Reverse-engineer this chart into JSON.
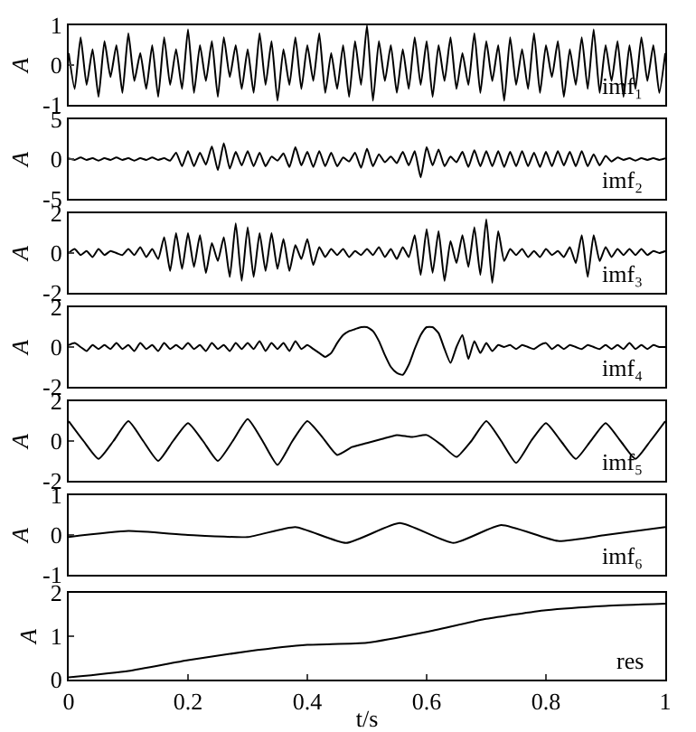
{
  "chart_data": [
    {
      "type": "line",
      "ylabel": "A",
      "annotations": [
        "imf₁"
      ],
      "xlim": [
        0,
        1
      ],
      "ylim": [
        -1,
        1
      ],
      "yticks": [
        -1,
        0,
        1
      ],
      "tick_labels": "y",
      "grid": false,
      "marker": "none",
      "line_style": "solid",
      "x": [
        0,
        0.01,
        0.02,
        0.03,
        0.04,
        0.05,
        0.06,
        0.07,
        0.08,
        0.09,
        0.1,
        0.11,
        0.12,
        0.13,
        0.14,
        0.15,
        0.16,
        0.17,
        0.18,
        0.19,
        0.2,
        0.21,
        0.22,
        0.23,
        0.24,
        0.25,
        0.26,
        0.27,
        0.28,
        0.29,
        0.3,
        0.31,
        0.32,
        0.33,
        0.34,
        0.35,
        0.36,
        0.37,
        0.38,
        0.39,
        0.4,
        0.41,
        0.42,
        0.43,
        0.44,
        0.45,
        0.46,
        0.47,
        0.48,
        0.49,
        0.5,
        0.51,
        0.52,
        0.53,
        0.54,
        0.55,
        0.56,
        0.57,
        0.58,
        0.59,
        0.6,
        0.61,
        0.62,
        0.63,
        0.64,
        0.65,
        0.66,
        0.67,
        0.68,
        0.69,
        0.7,
        0.71,
        0.72,
        0.73,
        0.74,
        0.75,
        0.76,
        0.77,
        0.78,
        0.79,
        0.8,
        0.81,
        0.82,
        0.83,
        0.84,
        0.85,
        0.86,
        0.87,
        0.88,
        0.89,
        0.9,
        0.91,
        0.92,
        0.93,
        0.94,
        0.95,
        0.96,
        0.97,
        0.98,
        0.99,
        1
      ],
      "series": [
        {
          "color": "#000000",
          "values": [
            0.3,
            -0.6,
            0.7,
            -0.5,
            0.4,
            -0.8,
            0.6,
            -0.3,
            0.5,
            -0.7,
            0.8,
            -0.4,
            0.3,
            -0.6,
            0.5,
            -0.8,
            0.7,
            -0.5,
            0.4,
            -0.6,
            0.9,
            -0.7,
            0.5,
            -0.4,
            0.6,
            -0.8,
            0.7,
            -0.3,
            0.5,
            -0.6,
            0.4,
            -0.7,
            0.8,
            -0.5,
            0.6,
            -0.9,
            0.4,
            -0.5,
            0.7,
            -0.6,
            0.5,
            -0.4,
            0.8,
            -0.7,
            0.3,
            -0.6,
            0.5,
            -0.8,
            0.6,
            -0.5,
            1.0,
            -0.9,
            0.6,
            -0.4,
            0.5,
            -0.7,
            0.4,
            -0.6,
            0.7,
            -0.5,
            0.6,
            -0.8,
            0.5,
            -0.4,
            0.7,
            -0.6,
            0.3,
            -0.5,
            0.8,
            -0.7,
            0.6,
            -0.4,
            0.5,
            -0.9,
            0.7,
            -0.5,
            0.4,
            -0.6,
            0.8,
            -0.7,
            0.5,
            -0.3,
            0.6,
            -0.8,
            0.4,
            -0.5,
            0.7,
            -0.6,
            0.9,
            -0.7,
            0.5,
            -0.4,
            0.6,
            -0.8,
            0.5,
            -0.6,
            0.7,
            -0.4,
            0.5,
            -0.7,
            0.3
          ]
        }
      ]
    },
    {
      "type": "line",
      "ylabel": "A",
      "annotations": [
        "imf₂"
      ],
      "xlim": [
        0,
        1
      ],
      "ylim": [
        -5,
        5
      ],
      "yticks": [
        -5,
        0,
        5
      ],
      "tick_labels": "y",
      "grid": false,
      "marker": "none",
      "line_style": "solid",
      "x": [
        0,
        0.01,
        0.02,
        0.03,
        0.04,
        0.05,
        0.06,
        0.07,
        0.08,
        0.09,
        0.1,
        0.11,
        0.12,
        0.13,
        0.14,
        0.15,
        0.16,
        0.17,
        0.18,
        0.19,
        0.2,
        0.21,
        0.22,
        0.23,
        0.24,
        0.25,
        0.26,
        0.27,
        0.28,
        0.29,
        0.3,
        0.31,
        0.32,
        0.33,
        0.34,
        0.35,
        0.36,
        0.37,
        0.38,
        0.39,
        0.4,
        0.41,
        0.42,
        0.43,
        0.44,
        0.45,
        0.46,
        0.47,
        0.48,
        0.49,
        0.5,
        0.51,
        0.52,
        0.53,
        0.54,
        0.55,
        0.56,
        0.57,
        0.58,
        0.59,
        0.6,
        0.61,
        0.62,
        0.63,
        0.64,
        0.65,
        0.66,
        0.67,
        0.68,
        0.69,
        0.7,
        0.71,
        0.72,
        0.73,
        0.74,
        0.75,
        0.76,
        0.77,
        0.78,
        0.79,
        0.8,
        0.81,
        0.82,
        0.83,
        0.84,
        0.85,
        0.86,
        0.87,
        0.88,
        0.89,
        0.9,
        0.91,
        0.92,
        0.93,
        0.94,
        0.95,
        0.96,
        0.97,
        0.98,
        0.99,
        1
      ],
      "series": [
        {
          "color": "#000000",
          "values": [
            0.1,
            -0.1,
            0.2,
            -0.1,
            0.1,
            -0.2,
            0.1,
            -0.1,
            0.2,
            -0.1,
            0.1,
            -0.2,
            0.1,
            -0.1,
            0.2,
            -0.1,
            0.1,
            -0.2,
            0.8,
            -0.9,
            1.0,
            -0.9,
            0.8,
            -0.7,
            1.6,
            -1.4,
            2.0,
            -1.2,
            0.9,
            -0.8,
            1.0,
            -0.9,
            0.8,
            -0.9,
            0.3,
            -0.2,
            0.7,
            -1.0,
            1.5,
            -0.8,
            0.9,
            -1.0,
            1.0,
            -0.9,
            0.8,
            -0.9,
            0.2,
            -0.3,
            0.8,
            -1.1,
            1.3,
            -0.9,
            0.6,
            -0.4,
            0.3,
            -0.5,
            0.9,
            -0.8,
            1.0,
            -2.3,
            1.5,
            -0.8,
            1.2,
            -0.9,
            0.3,
            -0.4,
            0.9,
            -1.0,
            1.1,
            -0.9,
            1.0,
            -0.9,
            1.0,
            -1.0,
            0.9,
            -0.9,
            1.0,
            -0.9,
            0.8,
            -1.0,
            0.9,
            -0.9,
            1.0,
            -0.8,
            0.9,
            -0.9,
            1.0,
            -0.9,
            0.6,
            -0.8,
            0.4,
            -0.3,
            0.2,
            -0.1,
            0.1,
            -0.2,
            0.1,
            -0.1,
            0.1,
            -0.1,
            0.1
          ]
        }
      ]
    },
    {
      "type": "line",
      "ylabel": "A",
      "annotations": [
        "imf₃"
      ],
      "xlim": [
        0,
        1
      ],
      "ylim": [
        -2,
        2
      ],
      "yticks": [
        -2,
        0,
        2
      ],
      "tick_labels": "y",
      "grid": false,
      "marker": "none",
      "line_style": "solid",
      "x": [
        0,
        0.01,
        0.02,
        0.03,
        0.04,
        0.05,
        0.06,
        0.07,
        0.08,
        0.09,
        0.1,
        0.11,
        0.12,
        0.13,
        0.14,
        0.15,
        0.16,
        0.17,
        0.18,
        0.19,
        0.2,
        0.21,
        0.22,
        0.23,
        0.24,
        0.25,
        0.26,
        0.27,
        0.28,
        0.29,
        0.3,
        0.31,
        0.32,
        0.33,
        0.34,
        0.35,
        0.36,
        0.37,
        0.38,
        0.39,
        0.4,
        0.41,
        0.42,
        0.43,
        0.44,
        0.45,
        0.46,
        0.47,
        0.48,
        0.49,
        0.5,
        0.51,
        0.52,
        0.53,
        0.54,
        0.55,
        0.56,
        0.57,
        0.58,
        0.59,
        0.6,
        0.61,
        0.62,
        0.63,
        0.64,
        0.65,
        0.66,
        0.67,
        0.68,
        0.69,
        0.7,
        0.71,
        0.72,
        0.73,
        0.74,
        0.75,
        0.76,
        0.77,
        0.78,
        0.79,
        0.8,
        0.81,
        0.82,
        0.83,
        0.84,
        0.85,
        0.86,
        0.87,
        0.88,
        0.89,
        0.9,
        0.91,
        0.92,
        0.93,
        0.94,
        0.95,
        0.96,
        0.97,
        0.98,
        0.99,
        1
      ],
      "series": [
        {
          "color": "#000000",
          "values": [
            0,
            0.2,
            -0.1,
            0.1,
            -0.2,
            0.2,
            -0.1,
            0.1,
            0,
            -0.1,
            0.2,
            -0.1,
            0.3,
            -0.2,
            0.2,
            -0.3,
            0.8,
            -0.9,
            1.0,
            -0.8,
            1.0,
            -0.7,
            0.9,
            -1.0,
            0.5,
            -0.4,
            0.8,
            -1.2,
            1.5,
            -1.4,
            1.3,
            -1.2,
            1.0,
            -0.9,
            1.0,
            -0.8,
            0.7,
            -0.9,
            0.4,
            -0.3,
            0.7,
            -0.6,
            0.3,
            -0.2,
            0.2,
            -0.1,
            0.2,
            -0.2,
            0.1,
            -0.1,
            0.2,
            -0.1,
            0.3,
            -0.2,
            0.2,
            -0.3,
            0.3,
            -0.2,
            0.9,
            -1.1,
            1.2,
            -1.0,
            1.1,
            -1.4,
            0.6,
            -0.5,
            0.9,
            -0.7,
            1.3,
            -1.1,
            1.7,
            -1.5,
            1.1,
            -0.4,
            0.2,
            -0.1,
            0.2,
            -0.2,
            0.1,
            -0.2,
            0.2,
            -0.1,
            0.1,
            -0.2,
            0.3,
            -0.5,
            0.9,
            -1.2,
            0.9,
            -0.4,
            0.3,
            -0.2,
            0.2,
            -0.1,
            0.2,
            -0.1,
            0.2,
            -0.1,
            0.1,
            0,
            0.1
          ]
        }
      ]
    },
    {
      "type": "line",
      "ylabel": "A",
      "annotations": [
        "imf₄"
      ],
      "xlim": [
        0,
        1
      ],
      "ylim": [
        -2,
        2
      ],
      "yticks": [
        -2,
        0,
        2
      ],
      "tick_labels": "y",
      "grid": false,
      "marker": "none",
      "line_style": "solid",
      "x": [
        0,
        0.01,
        0.02,
        0.03,
        0.04,
        0.05,
        0.06,
        0.07,
        0.08,
        0.09,
        0.1,
        0.11,
        0.12,
        0.13,
        0.14,
        0.15,
        0.16,
        0.17,
        0.18,
        0.19,
        0.2,
        0.21,
        0.22,
        0.23,
        0.24,
        0.25,
        0.26,
        0.27,
        0.28,
        0.29,
        0.3,
        0.31,
        0.32,
        0.33,
        0.34,
        0.35,
        0.36,
        0.37,
        0.38,
        0.39,
        0.4,
        0.41,
        0.42,
        0.43,
        0.44,
        0.45,
        0.46,
        0.47,
        0.48,
        0.49,
        0.5,
        0.51,
        0.52,
        0.53,
        0.54,
        0.55,
        0.56,
        0.57,
        0.58,
        0.59,
        0.6,
        0.61,
        0.62,
        0.63,
        0.64,
        0.65,
        0.66,
        0.67,
        0.68,
        0.69,
        0.7,
        0.71,
        0.72,
        0.73,
        0.74,
        0.75,
        0.76,
        0.77,
        0.78,
        0.79,
        0.8,
        0.81,
        0.82,
        0.83,
        0.84,
        0.85,
        0.86,
        0.87,
        0.88,
        0.89,
        0.9,
        0.91,
        0.92,
        0.93,
        0.94,
        0.95,
        0.96,
        0.97,
        0.98,
        0.99,
        1
      ],
      "series": [
        {
          "color": "#000000",
          "values": [
            0.1,
            0.2,
            0,
            -0.2,
            0.1,
            -0.1,
            0.1,
            -0.1,
            0.2,
            -0.1,
            0.1,
            -0.2,
            0.2,
            -0.1,
            0.1,
            -0.2,
            0.2,
            -0.1,
            0.1,
            -0.1,
            0.2,
            -0.1,
            0.1,
            -0.2,
            0.2,
            -0.1,
            0.1,
            -0.2,
            0.2,
            -0.1,
            0.2,
            -0.1,
            0.3,
            -0.2,
            0.2,
            -0.1,
            0.2,
            -0.2,
            0.3,
            -0.1,
            0.1,
            -0.1,
            -0.3,
            -0.5,
            -0.3,
            0.2,
            0.6,
            0.8,
            0.9,
            1.0,
            1.0,
            0.8,
            0.3,
            -0.4,
            -1.0,
            -1.3,
            -1.4,
            -0.9,
            -0.1,
            0.6,
            1.0,
            1.0,
            0.7,
            -0.1,
            -0.8,
            0,
            0.6,
            -0.6,
            0.3,
            -0.3,
            0.2,
            -0.2,
            0.1,
            0,
            0.1,
            -0.1,
            0.1,
            0,
            -0.1,
            0.1,
            0.2,
            -0.1,
            0.1,
            -0.1,
            0.1,
            0,
            -0.1,
            0.1,
            0,
            -0.1,
            0.1,
            -0.1,
            0.1,
            -0.1,
            0.2,
            -0.1,
            0.1,
            -0.1,
            0.1,
            0,
            0
          ]
        }
      ]
    },
    {
      "type": "line",
      "ylabel": "A",
      "annotations": [
        "imf₅"
      ],
      "xlim": [
        0,
        1
      ],
      "ylim": [
        -2,
        2
      ],
      "yticks": [
        -2,
        0,
        2
      ],
      "tick_labels": "y",
      "grid": false,
      "marker": "none",
      "line_style": "solid",
      "x": [
        0,
        0.025,
        0.05,
        0.075,
        0.1,
        0.125,
        0.15,
        0.175,
        0.2,
        0.225,
        0.25,
        0.275,
        0.3,
        0.325,
        0.35,
        0.375,
        0.4,
        0.425,
        0.45,
        0.475,
        0.5,
        0.525,
        0.55,
        0.575,
        0.6,
        0.625,
        0.65,
        0.675,
        0.7,
        0.725,
        0.75,
        0.775,
        0.8,
        0.825,
        0.85,
        0.875,
        0.9,
        0.925,
        0.95,
        0.975,
        1
      ],
      "series": [
        {
          "color": "#000000",
          "values": [
            1.0,
            0,
            -0.9,
            0,
            1.0,
            0,
            -1.0,
            0,
            0.9,
            0,
            -1.0,
            0,
            1.1,
            0,
            -1.2,
            0,
            1.0,
            0.2,
            -0.7,
            -0.3,
            -0.1,
            0.1,
            0.3,
            0.2,
            0.3,
            -0.2,
            -0.8,
            0,
            1.0,
            0,
            -1.1,
            0,
            0.9,
            0,
            -0.9,
            0,
            0.9,
            0,
            -0.9,
            0,
            1.0
          ]
        }
      ]
    },
    {
      "type": "line",
      "ylabel": "A",
      "annotations": [
        "imf₆"
      ],
      "xlim": [
        0,
        1
      ],
      "ylim": [
        -1,
        1
      ],
      "yticks": [
        -1,
        0,
        1
      ],
      "tick_labels": "y",
      "grid": false,
      "marker": "none",
      "line_style": "solid",
      "x": [
        0,
        0.1,
        0.2,
        0.3,
        0.38,
        0.465,
        0.555,
        0.645,
        0.725,
        0.82,
        0.9,
        1
      ],
      "series": [
        {
          "color": "#000000",
          "values": [
            -0.05,
            0.1,
            0,
            -0.05,
            0.2,
            -0.2,
            0.3,
            -0.2,
            0.25,
            -0.15,
            0,
            0.2
          ]
        }
      ]
    },
    {
      "type": "line",
      "ylabel": "A",
      "xlabel": "t/s",
      "annotations": [
        "res"
      ],
      "xlim": [
        0,
        1
      ],
      "xticks": [
        0,
        0.2,
        0.4,
        0.6,
        0.8,
        1
      ],
      "ylim": [
        0,
        2
      ],
      "yticks": [
        0,
        1,
        2
      ],
      "grid": false,
      "marker": "none",
      "line_style": "solid",
      "x": [
        0,
        0.1,
        0.2,
        0.3,
        0.4,
        0.5,
        0.6,
        0.7,
        0.8,
        0.9,
        1
      ],
      "series": [
        {
          "color": "#000000",
          "values": [
            0.05,
            0.2,
            0.45,
            0.65,
            0.8,
            0.85,
            1.1,
            1.4,
            1.6,
            1.7,
            1.75
          ]
        }
      ]
    }
  ]
}
